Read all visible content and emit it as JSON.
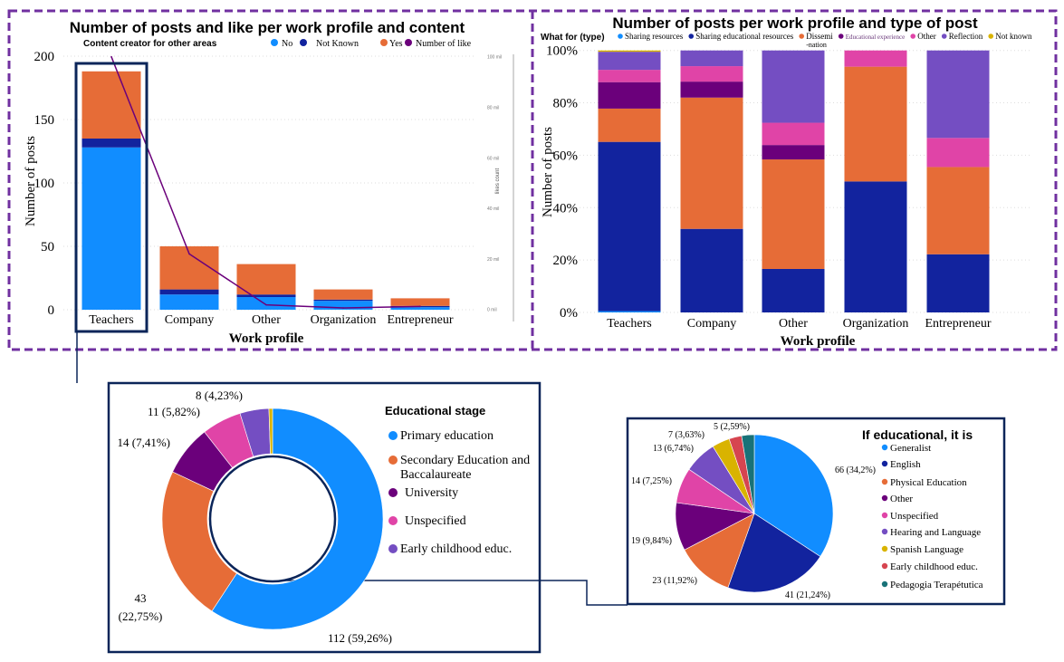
{
  "chart_data": [
    {
      "type": "bar",
      "stacked": true,
      "title": "Number of posts and like per work profile and content",
      "legend_title": "Content creator for other areas",
      "xlabel": "Work profile",
      "ylabel": "Number of posts",
      "y2label": "likes count",
      "categories": [
        "Teachers",
        "Company",
        "Other",
        "Organization",
        "Entrepreneur"
      ],
      "ylim": [
        0,
        200
      ],
      "yticks": [
        0,
        50,
        100,
        150,
        200
      ],
      "y2lim": [
        0,
        100
      ],
      "y2ticks": [
        "0 mil",
        "20 mil",
        "40 mil",
        "60 mil",
        "80 mil",
        "100 mil"
      ],
      "grid": true,
      "legend_position": "top",
      "series": [
        {
          "name": "No",
          "color": "#118dff",
          "values": [
            128,
            12,
            10,
            7,
            2
          ]
        },
        {
          "name": "Not Known",
          "color": "#12239e",
          "values": [
            7,
            4,
            2,
            1,
            1
          ]
        },
        {
          "name": "Yes",
          "color": "#e66c37",
          "values": [
            53,
            34,
            24,
            8,
            6
          ]
        }
      ],
      "line_series": {
        "name": "Number of like",
        "color": "#6b007b",
        "axis": "y2",
        "values": [
          100,
          22,
          1.8,
          0.6,
          1.2
        ]
      },
      "highlighted_category": "Teachers"
    },
    {
      "type": "bar",
      "stacked": true,
      "percent": true,
      "title": "Number of posts per work profile and type of post",
      "legend_title": "What for (type)",
      "xlabel": "Work profile",
      "ylabel": "Number of posts",
      "categories": [
        "Teachers",
        "Company",
        "Other",
        "Organization",
        "Entrepreneur"
      ],
      "ylim": [
        0,
        100
      ],
      "yticks": [
        "0%",
        "20%",
        "40%",
        "60%",
        "80%",
        "100%"
      ],
      "grid": true,
      "legend_position": "top",
      "series": [
        {
          "name": "Sharing resources",
          "color": "#118dff",
          "values": [
            0.5,
            0,
            0,
            0,
            0
          ]
        },
        {
          "name": "Sharing educational resources",
          "color": "#12239e",
          "values": [
            64.6,
            31.9,
            16.6,
            50,
            22.2
          ]
        },
        {
          "name": "Dissemi",
          "name_line2": "-nation",
          "color": "#e66c37",
          "values": [
            12.7,
            50.1,
            41.8,
            43.8,
            33.3
          ]
        },
        {
          "name": "Educational experience",
          "color": "#6b007b",
          "values": [
            10.1,
            6.1,
            5.5,
            0,
            0
          ]
        },
        {
          "name": "Other",
          "color": "#e044a7",
          "values": [
            4.7,
            5.9,
            8.5,
            6.2,
            11.1
          ]
        },
        {
          "name": "Reflection",
          "color": "#744ec2",
          "values": [
            6.9,
            6.0,
            27.6,
            0,
            33.4
          ]
        },
        {
          "name": "Not known",
          "color": "#d9b300",
          "values": [
            0.5,
            0,
            0,
            0,
            0
          ]
        }
      ]
    },
    {
      "type": "pie",
      "donut": true,
      "legend_title": "Educational stage",
      "legend_position": "right",
      "slices": [
        {
          "name": "Primary education",
          "value": 112,
          "label": "112 (59,26%)",
          "color": "#118dff"
        },
        {
          "name": "Secondary Education and Baccalaureate",
          "value": 43,
          "label": "43 (22,75%)",
          "color": "#e66c37"
        },
        {
          "name": "University",
          "value": 14,
          "label": "14 (7,41%)",
          "color": "#6b007b"
        },
        {
          "name": "Unspecified",
          "value": 11,
          "label": "11 (5,82%)",
          "color": "#e044a7"
        },
        {
          "name": "Early childhood educ.",
          "value": 8,
          "label": "8 (4,23%)",
          "color": "#744ec2"
        },
        {
          "value": 1,
          "color": "#d9b300"
        }
      ]
    },
    {
      "type": "pie",
      "legend_title": "If educational, it is",
      "legend_position": "right",
      "slices": [
        {
          "name": "Generalist",
          "value": 66,
          "label": "66 (34,2%)",
          "color": "#118dff"
        },
        {
          "name": "English",
          "value": 41,
          "label": "41 (21,24%)",
          "color": "#12239e"
        },
        {
          "name": "Physical Education",
          "value": 23,
          "label": "23 (11,92%)",
          "color": "#e66c37"
        },
        {
          "name": "Other",
          "value": 19,
          "label": "19 (9,84%)",
          "color": "#6b007b"
        },
        {
          "name": "Unspecified",
          "value": 14,
          "label": "14 (7,25%)",
          "color": "#e044a7"
        },
        {
          "name": "Hearing and Language",
          "value": 13,
          "label": "13 (6,74%)",
          "color": "#744ec2"
        },
        {
          "name": "Spanish Language",
          "value": 7,
          "label": "7 (3,63%)",
          "color": "#d9b300"
        },
        {
          "name": "Early childhood educ.",
          "value": 5,
          "label": "5 (2,59%)",
          "color": "#d64550"
        },
        {
          "name": "Pedagogia Terapétutica",
          "value": 5,
          "color": "#197278"
        }
      ]
    }
  ],
  "colors": {
    "dashed_frame": "#7030a0",
    "highlight_frame": "#0b2559"
  }
}
